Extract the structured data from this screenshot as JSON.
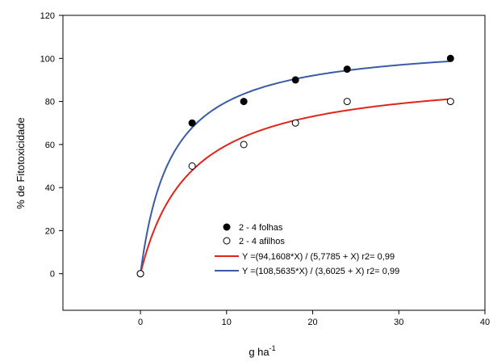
{
  "chart_data": {
    "type": "scatter",
    "xlabel": "g ha",
    "xlabel_sup": "-1",
    "ylabel": "% de Fitotoxicidade",
    "xlim": [
      -9,
      40
    ],
    "ylim": [
      -17,
      120
    ],
    "xticks": [
      0,
      10,
      20,
      30,
      40
    ],
    "yticks": [
      0,
      20,
      40,
      60,
      80,
      100,
      120
    ],
    "grid": false,
    "legend_position": "lower-right",
    "series": [
      {
        "name": "2 - 4 folhas",
        "marker": "filled-circle",
        "color": "#000000",
        "x": [
          0,
          6,
          12,
          18,
          24,
          36
        ],
        "y": [
          0,
          70,
          80,
          90,
          95,
          100
        ]
      },
      {
        "name": "2 - 4 afilhos",
        "marker": "open-circle",
        "color": "#000000",
        "x": [
          0,
          6,
          12,
          18,
          24,
          36
        ],
        "y": [
          0,
          50,
          60,
          70,
          80,
          80
        ]
      }
    ],
    "fits": [
      {
        "name": "Y =(94,1608*X) / (5,7785 + X)  r2= 0,99",
        "color": "#e2231a",
        "a": 94.1608,
        "b": 5.7785
      },
      {
        "name": "Y =(108,5635*X) / (3,6025 + X)  r2= 0,99",
        "color": "#3a5ba8",
        "a": 108.5635,
        "b": 3.6025
      }
    ]
  }
}
